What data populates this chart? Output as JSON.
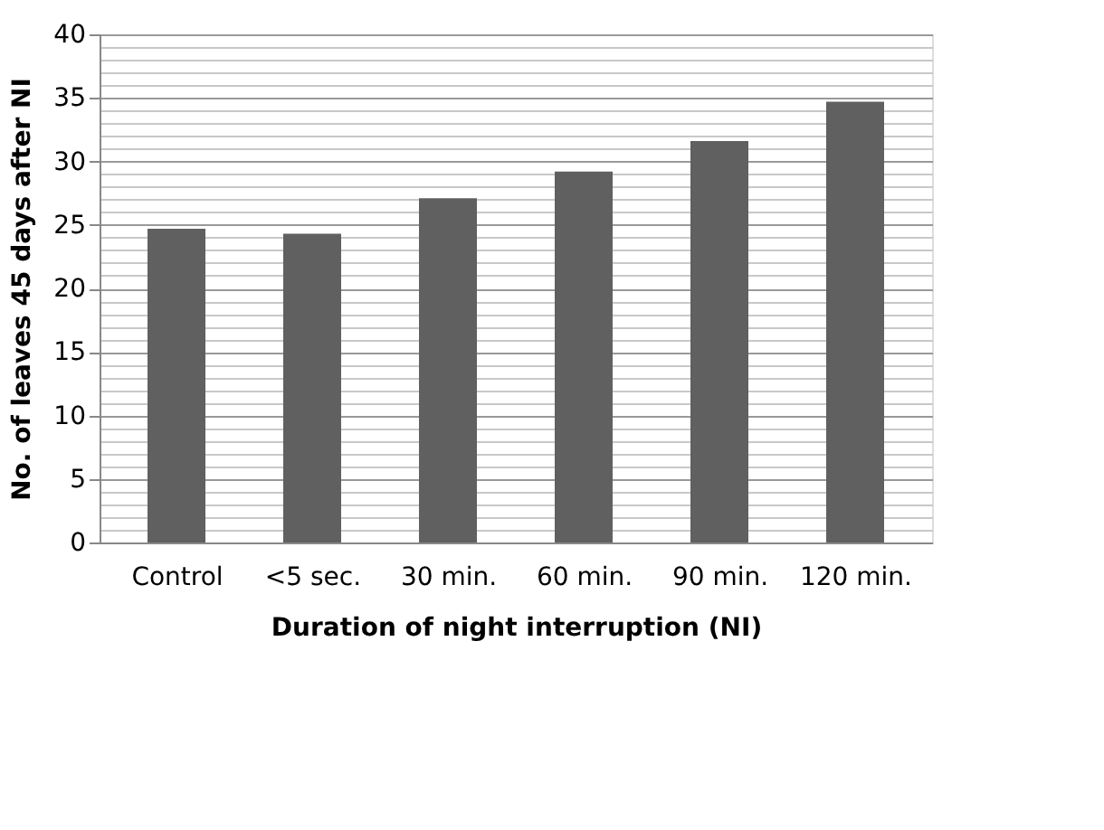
{
  "chart_data": {
    "type": "bar",
    "categories": [
      "Control",
      "<5 sec.",
      "30 min.",
      "60 min.",
      "90 min.",
      "120 min."
    ],
    "values": [
      24.7,
      24.3,
      27.1,
      29.2,
      31.6,
      34.7
    ],
    "color": "#606060",
    "xlabel": "Duration of night interruption (NI)",
    "ylabel": "No. of leaves 45 days after NI",
    "ylim": [
      0,
      40
    ],
    "yticks": [
      0,
      {
        "value": 1,
        "label": null
      },
      {
        "value": 2,
        "label": null
      },
      {
        "value": 3,
        "label": null
      },
      {
        "value": 4,
        "label": null
      },
      5,
      {
        "value": 6,
        "label": null
      },
      {
        "value": 7,
        "label": null
      },
      {
        "value": 8,
        "label": null
      },
      {
        "value": 9,
        "label": null
      },
      10,
      {
        "value": 11,
        "label": null
      },
      {
        "value": 12,
        "label": null
      },
      {
        "value": 13,
        "label": null
      },
      {
        "value": 14,
        "label": null
      },
      15,
      {
        "value": 16,
        "label": null
      },
      {
        "value": 17,
        "label": null
      },
      {
        "value": 18,
        "label": null
      },
      {
        "value": 19,
        "label": null
      },
      20,
      {
        "value": 21,
        "label": null
      },
      {
        "value": 22,
        "label": null
      },
      {
        "value": 23,
        "label": null
      },
      {
        "value": 24,
        "label": null
      },
      25,
      {
        "value": 26,
        "label": null
      },
      {
        "value": 27,
        "label": null
      },
      {
        "value": 28,
        "label": null
      },
      {
        "value": 29,
        "label": null
      },
      30,
      {
        "value": 31,
        "label": null
      },
      {
        "value": 32,
        "label": null
      },
      {
        "value": 33,
        "label": null
      },
      {
        "value": 34,
        "label": null
      },
      35,
      {
        "value": 36,
        "label": null
      },
      {
        "value": 37,
        "label": null
      },
      {
        "value": 38,
        "label": null
      },
      {
        "value": 39,
        "label": null
      },
      40
    ],
    "grid": "y"
  }
}
